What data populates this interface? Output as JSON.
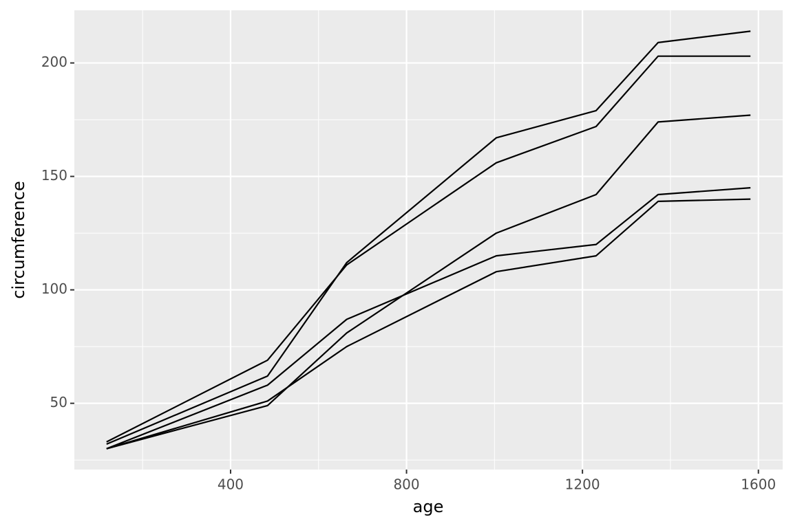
{
  "chart_data": {
    "type": "line",
    "x_label": "age",
    "y_label": "circumference",
    "x": [
      118,
      484,
      664,
      1004,
      1231,
      1372,
      1582
    ],
    "series": [
      {
        "color": "#000000",
        "values": [
          30,
          58,
          87,
          115,
          120,
          142,
          145
        ]
      },
      {
        "color": "#000000",
        "values": [
          33,
          69,
          111,
          156,
          172,
          203,
          203
        ]
      },
      {
        "color": "#000000",
        "values": [
          30,
          51,
          75,
          108,
          115,
          139,
          140
        ]
      },
      {
        "color": "#000000",
        "values": [
          32,
          62,
          112,
          167,
          179,
          209,
          214
        ]
      },
      {
        "color": "#000000",
        "values": [
          30,
          49,
          81,
          125,
          142,
          174,
          177
        ]
      }
    ],
    "xlim": [
      44.8,
      1655.2
    ],
    "xticks": [
      400,
      800,
      1200,
      1600
    ],
    "ylim": [
      20.8,
      223.2
    ],
    "yticks": [
      50,
      100,
      150,
      200
    ],
    "grid": true,
    "legend": false
  }
}
